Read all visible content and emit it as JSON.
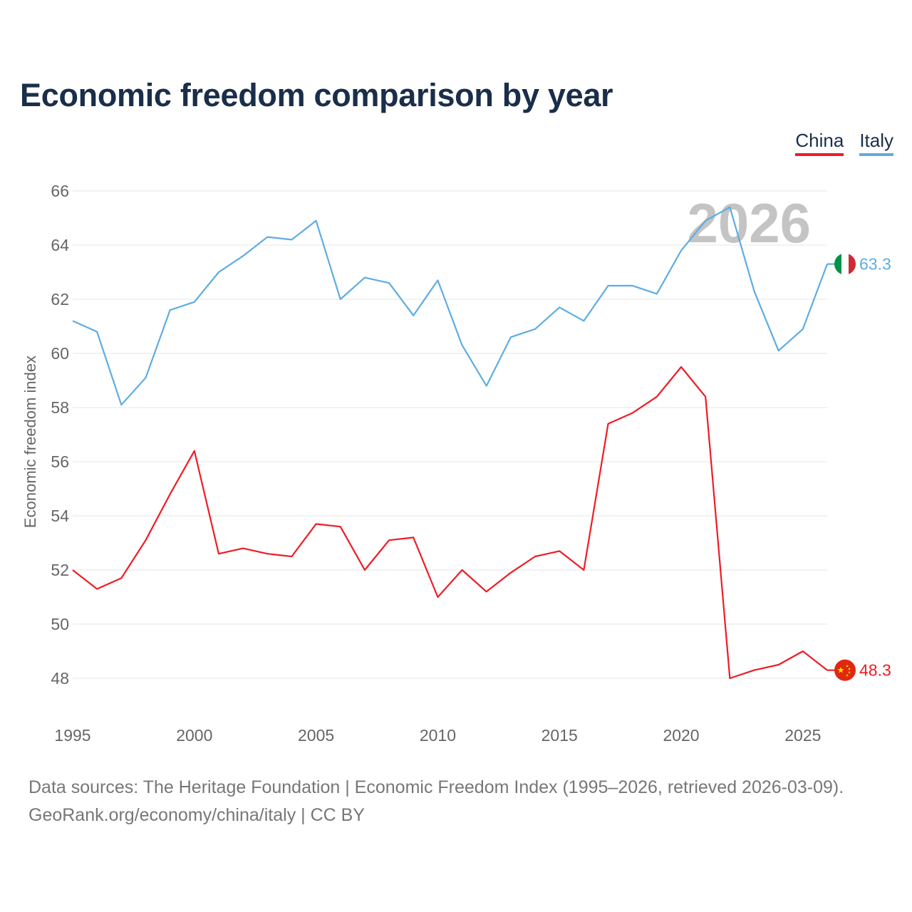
{
  "title": "Economic freedom comparison by year",
  "legend": {
    "china_label": "China",
    "italy_label": "Italy"
  },
  "source": {
    "line1": "Data sources: The Heritage Foundation | Economic Freedom Index (1995–2026, retrieved 2026-03-09).",
    "line2": "GeoRank.org/economy/china/italy | CC BY"
  },
  "chart_data": {
    "type": "line",
    "title": "Economic freedom comparison by year",
    "xlabel": "",
    "ylabel": "Economic freedom index",
    "year_watermark": "2026",
    "xlim": [
      1995,
      2026
    ],
    "ylim": [
      47,
      67
    ],
    "x_ticks": [
      1995,
      2000,
      2005,
      2010,
      2015,
      2020,
      2025
    ],
    "y_ticks": [
      48,
      50,
      52,
      54,
      56,
      58,
      60,
      62,
      64,
      66
    ],
    "grid": true,
    "x": [
      1995,
      1996,
      1997,
      1998,
      1999,
      2000,
      2001,
      2002,
      2003,
      2004,
      2005,
      2006,
      2007,
      2008,
      2009,
      2010,
      2011,
      2012,
      2013,
      2014,
      2015,
      2016,
      2017,
      2018,
      2019,
      2020,
      2021,
      2022,
      2023,
      2024,
      2025,
      2026
    ],
    "series": [
      {
        "name": "China",
        "color": "#ee1c25",
        "end_label": "48.3",
        "icon": "china-flag-icon",
        "values": [
          52.0,
          51.3,
          51.7,
          53.1,
          54.8,
          56.4,
          52.6,
          52.8,
          52.6,
          52.5,
          53.7,
          53.6,
          52.0,
          53.1,
          53.2,
          51.0,
          52.0,
          51.2,
          51.9,
          52.5,
          52.7,
          52.0,
          57.4,
          57.8,
          58.4,
          59.5,
          58.4,
          48.0,
          48.3,
          48.5,
          49.0,
          48.3
        ]
      },
      {
        "name": "Italy",
        "color": "#5dade2",
        "end_label": "63.3",
        "icon": "italy-flag-icon",
        "values": [
          61.2,
          60.8,
          58.1,
          59.1,
          61.6,
          61.9,
          63.0,
          63.6,
          64.3,
          64.2,
          64.9,
          62.0,
          62.8,
          62.6,
          61.4,
          62.7,
          60.3,
          58.8,
          60.6,
          60.9,
          61.7,
          61.2,
          62.5,
          62.5,
          62.2,
          63.8,
          64.9,
          65.4,
          62.3,
          60.1,
          60.9,
          63.3
        ]
      }
    ]
  }
}
